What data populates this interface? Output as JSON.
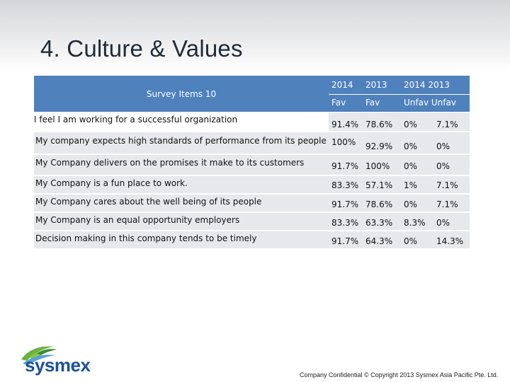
{
  "slide": {
    "title": "4. Culture & Values",
    "footer": "Company Confidential © Copyright 2013 Sysmex Asia Pacific Pte. Ltd.",
    "logo_text": "sysmex"
  },
  "table": {
    "header": {
      "item_label": "Survey Items 10",
      "year_2014_fav": "2014",
      "year_2013_fav": "2013",
      "years_unfav": "2014  2013",
      "fav_a": "Fav",
      "fav_b": "Fav",
      "unfav": "Unfav Unfav"
    },
    "rows": [
      {
        "item": "I feel I am working for a successful organization",
        "fav_2014": "91.4%",
        "fav_2013": "78.6%",
        "unfav_2014": "0%",
        "unfav_2013": "7.1%"
      },
      {
        "item": "My company expects high standards of performance from its people",
        "fav_2014": "100%",
        "fav_2013": "92.9%",
        "unfav_2014": "0%",
        "unfav_2013": "0%"
      },
      {
        "item": "My Company delivers on the promises it make to its customers",
        "fav_2014": "91.7%",
        "fav_2013": "100%",
        "unfav_2014": "0%",
        "unfav_2013": "0%"
      },
      {
        "item": "My Company is a fun place to work.",
        "fav_2014": "83.3%",
        "fav_2013": "57.1%",
        "unfav_2014": "1%",
        "unfav_2013": "7.1%"
      },
      {
        "item": "My Company cares about the well being of its people",
        "fav_2014": "91.7%",
        "fav_2013": "78.6%",
        "unfav_2014": "0%",
        "unfav_2013": "7.1%"
      },
      {
        "item": "My Company is an equal opportunity employers",
        "fav_2014": "83.3%",
        "fav_2013": "63.3%",
        "unfav_2014": "8.3%",
        "unfav_2013": "0%"
      },
      {
        "item": "Decision making in this company tends to be timely",
        "fav_2014": "91.7%",
        "fav_2013": "64.3%",
        "unfav_2014": "0%",
        "unfav_2013": "14.3%"
      }
    ]
  },
  "colors": {
    "header_blue": "#4f81bd",
    "row_gray": "#e6e8ec",
    "logo_blue": "#1c4f9c",
    "logo_green": "#6cb33f"
  }
}
